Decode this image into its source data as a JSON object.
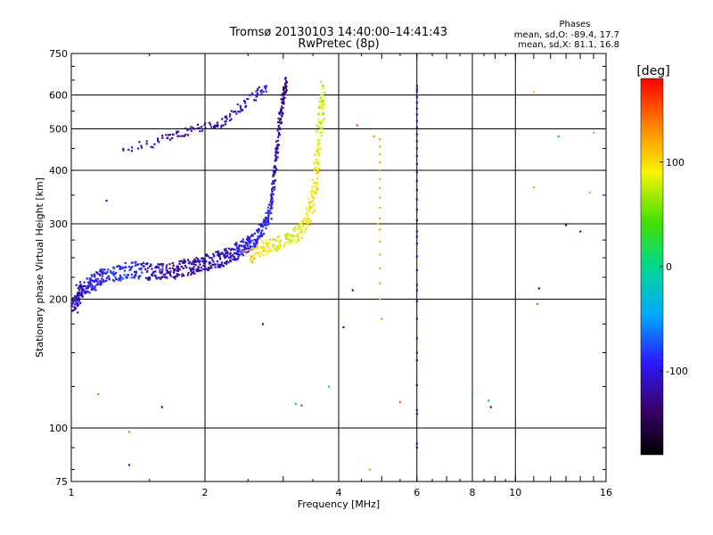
{
  "chart_data": {
    "type": "scatter",
    "title": "Tromsø 20130103 14:40:00–14:41:43",
    "subtitle": "RwPretec (8p)",
    "stats": {
      "title": "Phases",
      "line1": "mean, sd,O: -89.4, 17.7",
      "line2": "mean, sd,X:  81.1, 16.8"
    },
    "xlabel": "Frequency [MHz]",
    "ylabel": "Stationary phase Virtual Height [km]",
    "xscale": "log",
    "yscale": "log",
    "xlim": [
      1,
      16
    ],
    "ylim": [
      75,
      750
    ],
    "x_ticks": [
      1,
      2,
      4,
      6,
      8,
      10,
      16
    ],
    "y_ticks": [
      75,
      100,
      200,
      300,
      400,
      500,
      600,
      750
    ],
    "grid": true,
    "colorbar": {
      "label": "[deg]",
      "range": [
        -180,
        180
      ],
      "ticks": [
        100,
        0,
        -100
      ]
    },
    "series": [
      {
        "traces": [
          {
            "f": 1.01,
            "h": 192,
            "p": -120
          },
          {
            "f": 1.03,
            "h": 203,
            "p": -108
          },
          {
            "f": 1.06,
            "h": 212,
            "p": -110
          },
          {
            "f": 1.1,
            "h": 218,
            "p": -90
          },
          {
            "f": 1.15,
            "h": 224,
            "p": -95
          },
          {
            "f": 1.2,
            "h": 228,
            "p": -85
          },
          {
            "f": 1.3,
            "h": 232,
            "p": -80
          },
          {
            "f": 1.4,
            "h": 235,
            "p": -88
          },
          {
            "f": 1.5,
            "h": 232,
            "p": -105
          },
          {
            "f": 1.6,
            "h": 233,
            "p": -112
          },
          {
            "f": 1.7,
            "h": 234,
            "p": -118
          },
          {
            "f": 1.8,
            "h": 237,
            "p": -118
          },
          {
            "f": 1.9,
            "h": 240,
            "p": -115
          },
          {
            "f": 2.0,
            "h": 243,
            "p": -112
          },
          {
            "f": 2.1,
            "h": 246,
            "p": -110
          },
          {
            "f": 2.2,
            "h": 250,
            "p": -108
          },
          {
            "f": 2.3,
            "h": 255,
            "p": -102
          },
          {
            "f": 2.4,
            "h": 262,
            "p": -98
          },
          {
            "f": 2.5,
            "h": 268,
            "p": -95
          },
          {
            "f": 2.6,
            "h": 278,
            "p": -90
          },
          {
            "f": 2.7,
            "h": 292,
            "p": -88
          },
          {
            "f": 2.8,
            "h": 320,
            "p": -92
          },
          {
            "f": 2.85,
            "h": 370,
            "p": -100
          },
          {
            "f": 2.9,
            "h": 440,
            "p": -110
          },
          {
            "f": 2.95,
            "h": 520,
            "p": -120
          },
          {
            "f": 3.0,
            "h": 600,
            "p": -125
          },
          {
            "f": 3.05,
            "h": 640,
            "p": -130
          }
        ],
        "x_trace": [
          {
            "f": 2.5,
            "h": 252,
            "p": 120
          },
          {
            "f": 2.7,
            "h": 262,
            "p": 95
          },
          {
            "f": 2.9,
            "h": 270,
            "p": 90
          },
          {
            "f": 3.1,
            "h": 278,
            "p": 80
          },
          {
            "f": 3.3,
            "h": 290,
            "p": 88
          },
          {
            "f": 3.45,
            "h": 320,
            "p": 95
          },
          {
            "f": 3.55,
            "h": 380,
            "p": 100
          },
          {
            "f": 3.6,
            "h": 450,
            "p": 92
          },
          {
            "f": 3.65,
            "h": 540,
            "p": 80
          },
          {
            "f": 3.7,
            "h": 630,
            "p": 75
          }
        ],
        "f_layer": [
          {
            "f": 1.3,
            "h": 450,
            "p": -100
          },
          {
            "f": 1.6,
            "h": 470,
            "p": -115
          },
          {
            "f": 1.8,
            "h": 490,
            "p": -120
          },
          {
            "f": 2.0,
            "h": 505,
            "p": -118
          },
          {
            "f": 2.2,
            "h": 520,
            "p": -112
          },
          {
            "f": 2.4,
            "h": 560,
            "p": -100
          },
          {
            "f": 2.6,
            "h": 600,
            "p": -92
          },
          {
            "f": 2.75,
            "h": 630,
            "p": -95
          }
        ],
        "scattered": [
          {
            "f": 1.15,
            "h": 120,
            "p": 140
          },
          {
            "f": 1.35,
            "h": 98,
            "p": 140
          },
          {
            "f": 1.35,
            "h": 82,
            "p": -110
          },
          {
            "f": 1.6,
            "h": 112,
            "p": -120
          },
          {
            "f": 1.2,
            "h": 340,
            "p": -120
          },
          {
            "f": 2.7,
            "h": 175,
            "p": -130
          },
          {
            "f": 3.2,
            "h": 114,
            "p": -40
          },
          {
            "f": 3.3,
            "h": 113,
            "p": -60
          },
          {
            "f": 3.8,
            "h": 125,
            "p": -10
          },
          {
            "f": 4.1,
            "h": 172,
            "p": -120
          },
          {
            "f": 4.3,
            "h": 210,
            "p": -120
          },
          {
            "f": 4.4,
            "h": 510,
            "p": 160
          },
          {
            "f": 4.8,
            "h": 480,
            "p": 130
          },
          {
            "f": 4.9,
            "h": 300,
            "p": 110
          },
          {
            "f": 5.0,
            "h": 180,
            "p": 130
          },
          {
            "f": 4.7,
            "h": 80,
            "p": 130
          },
          {
            "f": 5.5,
            "h": 115,
            "p": 150
          },
          {
            "f": 6.0,
            "h": 620,
            "p": -120
          },
          {
            "f": 6.0,
            "h": 280,
            "p": -120
          },
          {
            "f": 6.0,
            "h": 210,
            "p": -120
          },
          {
            "f": 6.0,
            "h": 150,
            "p": -120
          },
          {
            "f": 6.0,
            "h": 110,
            "p": -120
          },
          {
            "f": 6.0,
            "h": 92,
            "p": -120
          },
          {
            "f": 8.0,
            "h": 122,
            "p": -20
          },
          {
            "f": 8.7,
            "h": 116,
            "p": -10
          },
          {
            "f": 8.8,
            "h": 112,
            "p": -120
          },
          {
            "f": 11.0,
            "h": 610,
            "p": 110
          },
          {
            "f": 11.0,
            "h": 365,
            "p": 130
          },
          {
            "f": 11.2,
            "h": 195,
            "p": 150
          },
          {
            "f": 11.3,
            "h": 212,
            "p": -120
          },
          {
            "f": 12.5,
            "h": 480,
            "p": -20
          },
          {
            "f": 13.0,
            "h": 298,
            "p": -120
          },
          {
            "f": 14.0,
            "h": 288,
            "p": -120
          },
          {
            "f": 14.7,
            "h": 355,
            "p": 60
          },
          {
            "f": 15.0,
            "h": 490,
            "p": 120
          }
        ]
      }
    ]
  }
}
